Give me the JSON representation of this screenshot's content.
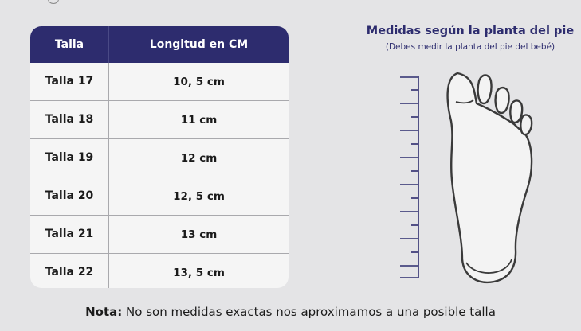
{
  "table": {
    "headers": [
      "Talla",
      "Longitud en CM"
    ],
    "rows": [
      [
        "Talla 17",
        "10, 5 cm"
      ],
      [
        "Talla 18",
        "11 cm"
      ],
      [
        "Talla 19",
        "12 cm"
      ],
      [
        "Talla 20",
        "12, 5 cm"
      ],
      [
        "Talla 21",
        "13 cm"
      ],
      [
        "Talla 22",
        "13, 5 cm"
      ]
    ]
  },
  "diagram": {
    "title": "Medidas según la planta del pie",
    "subtitle": "(Debes medir la planta del pie del bebé)"
  },
  "note": {
    "label": "Nota:",
    "text": "No son medidas exactas nos aproximamos a una posible talla"
  },
  "colors": {
    "header_bg": "#2d2c6e",
    "accent_text": "#2d2c6e",
    "page_bg": "#e4e4e6"
  }
}
